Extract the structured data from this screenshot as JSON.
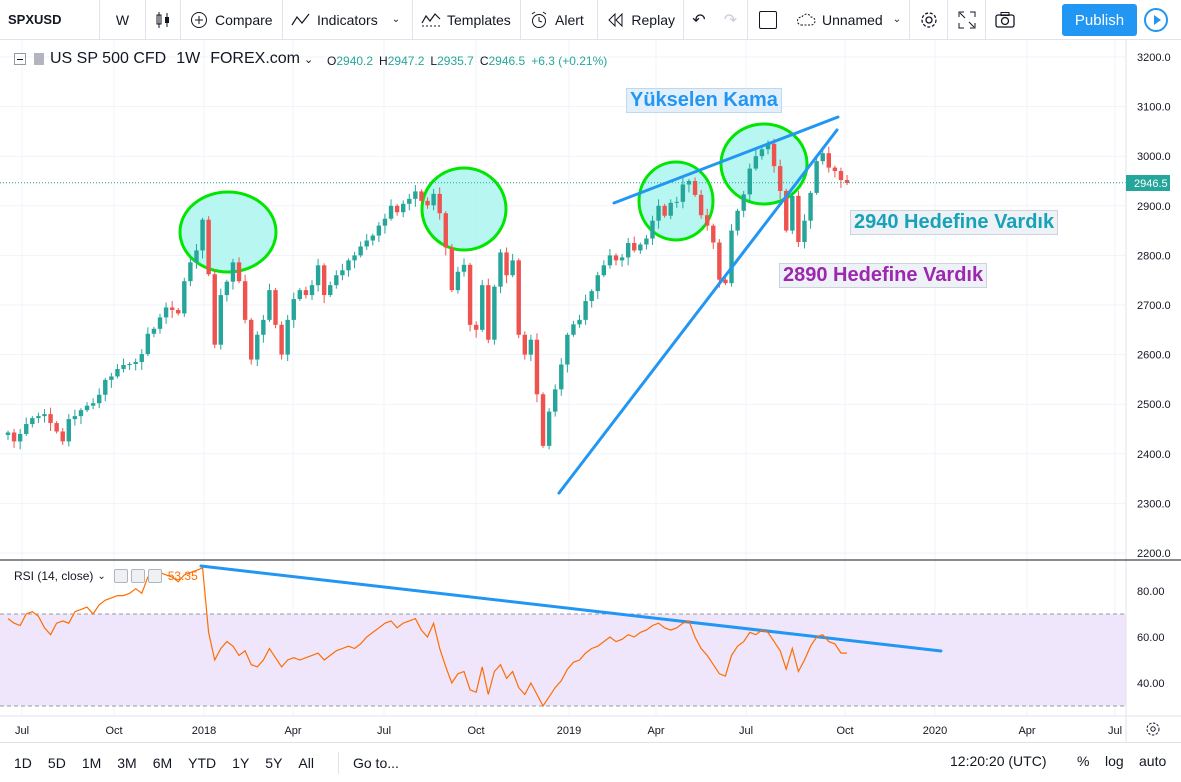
{
  "toolbar": {
    "symbol": "SPXUSD",
    "interval": "W",
    "compare": "Compare",
    "indicators": "Indicators",
    "templates": "Templates",
    "alert": "Alert",
    "replay": "Replay",
    "layout_name": "Unnamed",
    "publish": "Publish"
  },
  "legend": {
    "title": "US SP 500 CFD",
    "interval": "1W",
    "source": "FOREX.com",
    "ohlc": [
      {
        "label": "O",
        "value": "2940.2"
      },
      {
        "label": "H",
        "value": "2947.2"
      },
      {
        "label": "L",
        "value": "2935.7"
      },
      {
        "label": "C",
        "value": "2946.5"
      },
      {
        "label": "",
        "value": "+6.3 (+0.21%)"
      }
    ]
  },
  "rsi": {
    "label": "RSI (14, close)",
    "value": "53.35"
  },
  "annotations": {
    "wedge": "Yükselen Kama",
    "target1": "2940 Hedefine Vardık",
    "target2": "2890 Hedefine Vardık"
  },
  "colors": {
    "up": "#26a69a",
    "down": "#ef5350",
    "trendline": "#2196f3",
    "circle_stroke": "#00e600",
    "circle_fill": "#aaf5ee",
    "rsi_line": "#ff6d00",
    "rsi_band": "#f0e6fb",
    "wedge_text": "#2196f3",
    "target1_text": "#17a2b8",
    "target2_text": "#9c27b0"
  },
  "price_axis": {
    "labels": [
      "3200.0",
      "3100.0",
      "3000.0",
      "2900.0",
      "2800.0",
      "2700.0",
      "2600.0",
      "2500.0",
      "2400.0",
      "2300.0",
      "2200.0"
    ],
    "last_price": "2946.5"
  },
  "rsi_axis": {
    "labels": [
      "80.00",
      "60.00",
      "40.00"
    ]
  },
  "time_axis": {
    "labels": [
      "Jul",
      "Oct",
      "2018",
      "Apr",
      "Jul",
      "Oct",
      "2019",
      "Apr",
      "Jul",
      "Oct",
      "2020",
      "Apr",
      "Jul"
    ]
  },
  "bottombar": {
    "ranges": [
      "1D",
      "5D",
      "1M",
      "3M",
      "6M",
      "YTD",
      "1Y",
      "5Y",
      "All"
    ],
    "goto": "Go to...",
    "time": "12:20:20 (UTC)",
    "percent": "%",
    "log": "log",
    "auto": "auto"
  },
  "chart_data": {
    "type": "candlestick",
    "title": "US SP 500 CFD",
    "interval": "1W",
    "ylim": [
      2200,
      3220
    ],
    "x_range": [
      "2017-07",
      "2020-07"
    ],
    "closes": [
      2443,
      2425,
      2440,
      2460,
      2472,
      2476,
      2480,
      2462,
      2445,
      2425,
      2470,
      2476,
      2488,
      2497,
      2502,
      2519,
      2549,
      2556,
      2571,
      2579,
      2581,
      2585,
      2601,
      2642,
      2652,
      2675,
      2695,
      2690,
      2683,
      2748,
      2786,
      2810,
      2872,
      2762,
      2620,
      2720,
      2747,
      2786,
      2748,
      2670,
      2590,
      2640,
      2670,
      2730,
      2660,
      2600,
      2670,
      2712,
      2730,
      2720,
      2740,
      2780,
      2720,
      2740,
      2760,
      2770,
      2790,
      2800,
      2818,
      2830,
      2840,
      2860,
      2874,
      2900,
      2887,
      2904,
      2914,
      2929,
      2910,
      2901,
      2924,
      2885,
      2816,
      2730,
      2767,
      2781,
      2660,
      2650,
      2740,
      2630,
      2737,
      2806,
      2760,
      2790,
      2640,
      2600,
      2630,
      2520,
      2416,
      2485,
      2530,
      2580,
      2640,
      2661,
      2670,
      2708,
      2728,
      2760,
      2780,
      2800,
      2790,
      2796,
      2825,
      2810,
      2822,
      2834,
      2870,
      2900,
      2880,
      2906,
      2908,
      2943,
      2950,
      2922,
      2881,
      2860,
      2826,
      2751,
      2744,
      2850,
      2890,
      2923,
      2975,
      3000,
      3014,
      3025,
      2980,
      2930,
      2850,
      2920,
      2827,
      2870,
      2926,
      2990,
      3006,
      2977,
      2970,
      2952,
      2946
    ]
  }
}
